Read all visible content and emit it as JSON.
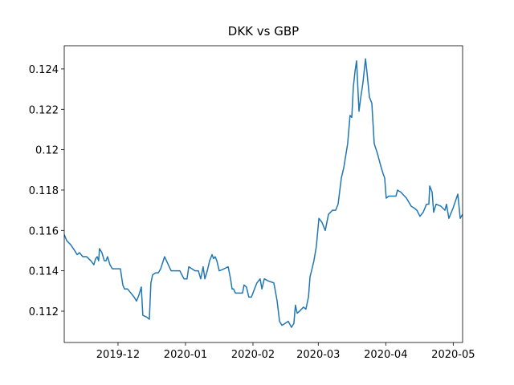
{
  "chart_data": {
    "type": "line",
    "title": "DKK vs GBP",
    "x": [
      -24.7,
      -23.6,
      -21.8,
      -19.9,
      -18.8,
      -17.7,
      -16.2,
      -15.1,
      -14.4,
      -12.5,
      -11.1,
      -10.3,
      -9.6,
      -8.9,
      -8.5,
      -7.4,
      -6.3,
      -5.9,
      -5.5,
      -4.8,
      -3.7,
      -2.6,
      -0.7,
      1.1,
      2.2,
      3.0,
      4.4,
      5.9,
      7.4,
      8.5,
      9.6,
      10.7,
      11.4,
      13.3,
      14.4,
      15.1,
      15.9,
      17.3,
      18.5,
      19.6,
      21.4,
      24.4,
      27.3,
      28.4,
      30.3,
      31.7,
      32.5,
      35.4,
      36.9,
      38.0,
      39.1,
      39.9,
      41.0,
      42.1,
      43.2,
      43.9,
      44.6,
      45.4,
      46.5,
      48.7,
      50.6,
      51.7,
      52.4,
      53.1,
      53.9,
      55.4,
      57.2,
      57.9,
      59.0,
      60.1,
      61.3,
      62.7,
      63.8,
      65.3,
      66.1,
      67.2,
      69.0,
      71.6,
      73.1,
      74.2,
      75.3,
      76.8,
      78.2,
      79.7,
      80.8,
      81.5,
      82.3,
      83.4,
      85.2,
      86.3,
      87.5,
      88.2,
      88.9,
      90.0,
      91.1,
      92.3,
      93.7,
      95.2,
      96.7,
      98.5,
      100.0,
      101.1,
      102.6,
      103.7,
      105.5,
      106.6,
      107.4,
      108.1,
      108.9,
      109.6,
      110.7,
      111.4,
      112.5,
      113.7,
      114.4,
      115.5,
      116.6,
      117.7,
      119.2,
      120.7,
      121.8,
      122.5,
      123.2,
      124.4,
      125.8,
      127.7,
      128.4,
      129.9,
      132.5,
      134.7,
      136.2,
      137.3,
      138.7,
      140.2,
      141.7,
      142.8,
      143.2,
      144.3,
      145.0,
      146.1,
      148.3,
      150.2,
      150.9,
      152.0,
      153.9,
      156.1,
      157.2,
      158.3
    ],
    "series": [
      {
        "color": "#1f77b4",
        "values": [
          0.1158,
          0.1155,
          0.1153,
          0.115,
          0.1148,
          0.1149,
          0.1147,
          0.1147,
          0.1147,
          0.1145,
          0.1143,
          0.1146,
          0.1147,
          0.1145,
          0.1151,
          0.1149,
          0.1145,
          0.1145,
          0.1145,
          0.1147,
          0.1143,
          0.1141,
          0.1141,
          0.1141,
          0.1133,
          0.1131,
          0.1131,
          0.1129,
          0.1127,
          0.1125,
          0.1128,
          0.1132,
          0.1118,
          0.1117,
          0.1116,
          0.1134,
          0.1138,
          0.1139,
          0.1139,
          0.1141,
          0.1147,
          0.114,
          0.114,
          0.114,
          0.1136,
          0.1136,
          0.1142,
          0.114,
          0.114,
          0.1136,
          0.1142,
          0.1136,
          0.114,
          0.1145,
          0.1148,
          0.1146,
          0.1147,
          0.1145,
          0.114,
          0.1141,
          0.1142,
          0.1136,
          0.1131,
          0.1131,
          0.1129,
          0.1129,
          0.1129,
          0.1133,
          0.1132,
          0.1127,
          0.1127,
          0.1131,
          0.1134,
          0.1136,
          0.1131,
          0.1136,
          0.1135,
          0.1134,
          0.1125,
          0.1115,
          0.1113,
          0.1114,
          0.1115,
          0.1112,
          0.1114,
          0.1123,
          0.1119,
          0.112,
          0.1122,
          0.1121,
          0.1127,
          0.1137,
          0.114,
          0.1145,
          0.1152,
          0.1166,
          0.1164,
          0.116,
          0.1168,
          0.117,
          0.117,
          0.1173,
          0.1186,
          0.1191,
          0.1203,
          0.1217,
          0.1216,
          0.1231,
          0.1239,
          0.1244,
          0.1219,
          0.1225,
          0.1233,
          0.1245,
          0.1238,
          0.1226,
          0.1223,
          0.1203,
          0.1198,
          0.1192,
          0.1188,
          0.1186,
          0.1176,
          0.1177,
          0.1177,
          0.1177,
          0.118,
          0.1179,
          0.1176,
          0.1172,
          0.1171,
          0.117,
          0.1167,
          0.1169,
          0.1173,
          0.1173,
          0.1182,
          0.1179,
          0.1169,
          0.1173,
          0.1172,
          0.117,
          0.1173,
          0.1166,
          0.1171,
          0.1178,
          0.1166,
          0.1168
        ]
      }
    ],
    "xlim": [
      -24.7,
      158.3
    ],
    "xticks": [
      {
        "value": 0,
        "label": "2019-12"
      },
      {
        "value": 31,
        "label": "2020-01"
      },
      {
        "value": 62,
        "label": "2020-02"
      },
      {
        "value": 92,
        "label": "2020-03"
      },
      {
        "value": 123,
        "label": "2020-04"
      },
      {
        "value": 154,
        "label": "2020-05"
      }
    ],
    "ylim": [
      0.11045,
      0.12515
    ],
    "yticks": [
      0.112,
      0.114,
      0.116,
      0.118,
      0.12,
      0.122,
      0.124
    ]
  }
}
